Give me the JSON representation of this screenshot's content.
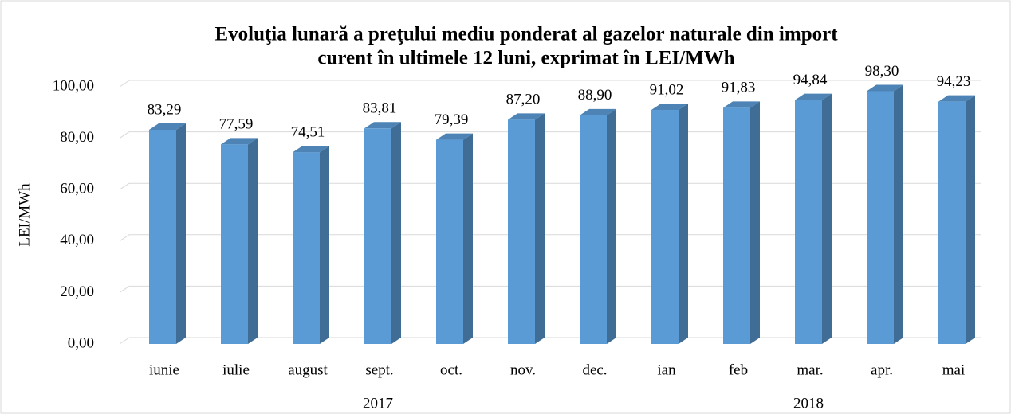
{
  "chart_data": {
    "type": "bar3d",
    "title": "Evoluţia lunară a preţului mediu ponderat al gazelor naturale din import",
    "subtitle": "curent în ultimele 12 luni, exprimat în LEI/MWh",
    "y_label": "LEI/MWh",
    "category_groups": [
      {
        "label": "2017",
        "categories": [
          "iunie",
          "iulie",
          "august",
          "sept.",
          "oct.",
          "nov.",
          "dec."
        ]
      },
      {
        "label": "2018",
        "categories": [
          "ian",
          "feb",
          "mar.",
          "apr.",
          "mai"
        ]
      }
    ],
    "values": [
      83.29,
      77.59,
      74.51,
      83.81,
      79.39,
      87.2,
      88.9,
      91.02,
      91.83,
      94.84,
      98.3,
      94.23
    ],
    "value_labels": [
      "83,29",
      "77,59",
      "74,51",
      "83,81",
      "79,39",
      "87,20",
      "88,90",
      "91,02",
      "91,83",
      "94,84",
      "98,30",
      "94,23"
    ],
    "color": "#5b9bd5",
    "ylim": [
      0,
      100
    ],
    "yticks": [
      {
        "value": 0,
        "label": "0,00"
      },
      {
        "value": 20,
        "label": "20,00"
      },
      {
        "value": 40,
        "label": "40,00"
      },
      {
        "value": 60,
        "label": "60,00"
      },
      {
        "value": 80,
        "label": "80,00"
      },
      {
        "value": 100,
        "label": "100,00"
      }
    ],
    "grid": true
  }
}
